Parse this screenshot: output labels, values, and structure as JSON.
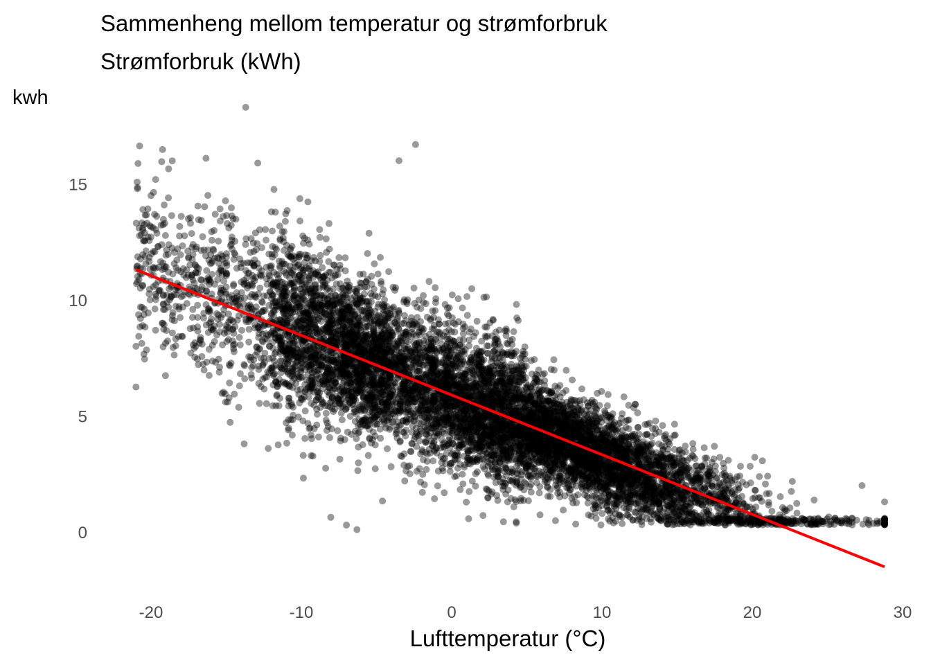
{
  "chart_data": {
    "type": "scatter",
    "title": "Sammenheng mellom temperatur og strømforbruk",
    "subtitle": "Strømforbruk (kWh)",
    "xlabel": "Lufttemperatur (°C)",
    "ylabel": "kwh",
    "xlim": [
      -23,
      30
    ],
    "ylim": [
      -2.2,
      18.5
    ],
    "x_ticks": [
      -20,
      -10,
      0,
      10,
      20,
      30
    ],
    "y_ticks": [
      0,
      5,
      10,
      15
    ],
    "x_tick_labels": [
      "-20",
      "-10",
      "0",
      "10",
      "20",
      "30"
    ],
    "y_tick_labels": [
      "0",
      "5",
      "10",
      "15"
    ],
    "grid": false,
    "legend": "none",
    "point_color": "#000000",
    "point_opacity": 0.4,
    "trend_line_color": "#ff0000",
    "trend_line": {
      "x": [
        -21,
        28.8
      ],
      "y": [
        11.3,
        -1.5
      ]
    },
    "cloud_model": {
      "x_range": [
        -21,
        28.8
      ],
      "n_points": 9000,
      "description_model": "y ≈ 5.9 - 0.27·x with spread, floor near 0.3"
    },
    "notable_points": [
      {
        "x": -13.7,
        "y": 18.3
      },
      {
        "x": -2.4,
        "y": 16.7
      },
      {
        "x": -3.5,
        "y": 16.0
      },
      {
        "x": -12.9,
        "y": 15.9
      },
      {
        "x": -20.0,
        "y": 14.5
      },
      {
        "x": -6.3,
        "y": 0.1
      },
      {
        "x": -7.0,
        "y": 0.3
      },
      {
        "x": -13.8,
        "y": 3.8
      },
      {
        "x": -12.2,
        "y": 3.6
      },
      {
        "x": -14.9,
        "y": 5.6
      },
      {
        "x": 28.8,
        "y": 1.3
      },
      {
        "x": 27.3,
        "y": 2.0
      },
      {
        "x": -20.7,
        "y": 9.2
      }
    ]
  }
}
